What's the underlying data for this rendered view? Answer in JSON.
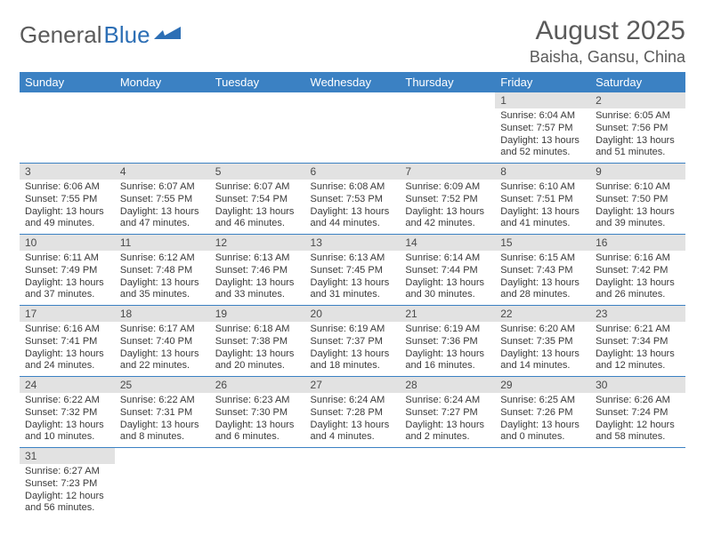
{
  "logo": {
    "text1": "General",
    "text2": "Blue"
  },
  "title": "August 2025",
  "location": "Baisha, Gansu, China",
  "colors": {
    "header_bg": "#3b81c3",
    "header_fg": "#ffffff",
    "daynum_bg": "#e2e2e2",
    "text": "#3a3a3a",
    "logo_gray": "#5a5a5a",
    "logo_blue": "#2d6fb5",
    "rule": "#3b81c3",
    "background": "#ffffff"
  },
  "typography": {
    "title_fontsize": 30,
    "location_fontsize": 18,
    "logo_fontsize": 26,
    "header_fontsize": 13,
    "daynum_fontsize": 12,
    "body_fontsize": 11
  },
  "weekdays": [
    "Sunday",
    "Monday",
    "Tuesday",
    "Wednesday",
    "Thursday",
    "Friday",
    "Saturday"
  ],
  "weeks": [
    [
      null,
      null,
      null,
      null,
      null,
      {
        "n": "1",
        "sr": "Sunrise: 6:04 AM",
        "ss": "Sunset: 7:57 PM",
        "dl": "Daylight: 13 hours and 52 minutes."
      },
      {
        "n": "2",
        "sr": "Sunrise: 6:05 AM",
        "ss": "Sunset: 7:56 PM",
        "dl": "Daylight: 13 hours and 51 minutes."
      }
    ],
    [
      {
        "n": "3",
        "sr": "Sunrise: 6:06 AM",
        "ss": "Sunset: 7:55 PM",
        "dl": "Daylight: 13 hours and 49 minutes."
      },
      {
        "n": "4",
        "sr": "Sunrise: 6:07 AM",
        "ss": "Sunset: 7:55 PM",
        "dl": "Daylight: 13 hours and 47 minutes."
      },
      {
        "n": "5",
        "sr": "Sunrise: 6:07 AM",
        "ss": "Sunset: 7:54 PM",
        "dl": "Daylight: 13 hours and 46 minutes."
      },
      {
        "n": "6",
        "sr": "Sunrise: 6:08 AM",
        "ss": "Sunset: 7:53 PM",
        "dl": "Daylight: 13 hours and 44 minutes."
      },
      {
        "n": "7",
        "sr": "Sunrise: 6:09 AM",
        "ss": "Sunset: 7:52 PM",
        "dl": "Daylight: 13 hours and 42 minutes."
      },
      {
        "n": "8",
        "sr": "Sunrise: 6:10 AM",
        "ss": "Sunset: 7:51 PM",
        "dl": "Daylight: 13 hours and 41 minutes."
      },
      {
        "n": "9",
        "sr": "Sunrise: 6:10 AM",
        "ss": "Sunset: 7:50 PM",
        "dl": "Daylight: 13 hours and 39 minutes."
      }
    ],
    [
      {
        "n": "10",
        "sr": "Sunrise: 6:11 AM",
        "ss": "Sunset: 7:49 PM",
        "dl": "Daylight: 13 hours and 37 minutes."
      },
      {
        "n": "11",
        "sr": "Sunrise: 6:12 AM",
        "ss": "Sunset: 7:48 PM",
        "dl": "Daylight: 13 hours and 35 minutes."
      },
      {
        "n": "12",
        "sr": "Sunrise: 6:13 AM",
        "ss": "Sunset: 7:46 PM",
        "dl": "Daylight: 13 hours and 33 minutes."
      },
      {
        "n": "13",
        "sr": "Sunrise: 6:13 AM",
        "ss": "Sunset: 7:45 PM",
        "dl": "Daylight: 13 hours and 31 minutes."
      },
      {
        "n": "14",
        "sr": "Sunrise: 6:14 AM",
        "ss": "Sunset: 7:44 PM",
        "dl": "Daylight: 13 hours and 30 minutes."
      },
      {
        "n": "15",
        "sr": "Sunrise: 6:15 AM",
        "ss": "Sunset: 7:43 PM",
        "dl": "Daylight: 13 hours and 28 minutes."
      },
      {
        "n": "16",
        "sr": "Sunrise: 6:16 AM",
        "ss": "Sunset: 7:42 PM",
        "dl": "Daylight: 13 hours and 26 minutes."
      }
    ],
    [
      {
        "n": "17",
        "sr": "Sunrise: 6:16 AM",
        "ss": "Sunset: 7:41 PM",
        "dl": "Daylight: 13 hours and 24 minutes."
      },
      {
        "n": "18",
        "sr": "Sunrise: 6:17 AM",
        "ss": "Sunset: 7:40 PM",
        "dl": "Daylight: 13 hours and 22 minutes."
      },
      {
        "n": "19",
        "sr": "Sunrise: 6:18 AM",
        "ss": "Sunset: 7:38 PM",
        "dl": "Daylight: 13 hours and 20 minutes."
      },
      {
        "n": "20",
        "sr": "Sunrise: 6:19 AM",
        "ss": "Sunset: 7:37 PM",
        "dl": "Daylight: 13 hours and 18 minutes."
      },
      {
        "n": "21",
        "sr": "Sunrise: 6:19 AM",
        "ss": "Sunset: 7:36 PM",
        "dl": "Daylight: 13 hours and 16 minutes."
      },
      {
        "n": "22",
        "sr": "Sunrise: 6:20 AM",
        "ss": "Sunset: 7:35 PM",
        "dl": "Daylight: 13 hours and 14 minutes."
      },
      {
        "n": "23",
        "sr": "Sunrise: 6:21 AM",
        "ss": "Sunset: 7:34 PM",
        "dl": "Daylight: 13 hours and 12 minutes."
      }
    ],
    [
      {
        "n": "24",
        "sr": "Sunrise: 6:22 AM",
        "ss": "Sunset: 7:32 PM",
        "dl": "Daylight: 13 hours and 10 minutes."
      },
      {
        "n": "25",
        "sr": "Sunrise: 6:22 AM",
        "ss": "Sunset: 7:31 PM",
        "dl": "Daylight: 13 hours and 8 minutes."
      },
      {
        "n": "26",
        "sr": "Sunrise: 6:23 AM",
        "ss": "Sunset: 7:30 PM",
        "dl": "Daylight: 13 hours and 6 minutes."
      },
      {
        "n": "27",
        "sr": "Sunrise: 6:24 AM",
        "ss": "Sunset: 7:28 PM",
        "dl": "Daylight: 13 hours and 4 minutes."
      },
      {
        "n": "28",
        "sr": "Sunrise: 6:24 AM",
        "ss": "Sunset: 7:27 PM",
        "dl": "Daylight: 13 hours and 2 minutes."
      },
      {
        "n": "29",
        "sr": "Sunrise: 6:25 AM",
        "ss": "Sunset: 7:26 PM",
        "dl": "Daylight: 13 hours and 0 minutes."
      },
      {
        "n": "30",
        "sr": "Sunrise: 6:26 AM",
        "ss": "Sunset: 7:24 PM",
        "dl": "Daylight: 12 hours and 58 minutes."
      }
    ],
    [
      {
        "n": "31",
        "sr": "Sunrise: 6:27 AM",
        "ss": "Sunset: 7:23 PM",
        "dl": "Daylight: 12 hours and 56 minutes."
      },
      null,
      null,
      null,
      null,
      null,
      null
    ]
  ]
}
